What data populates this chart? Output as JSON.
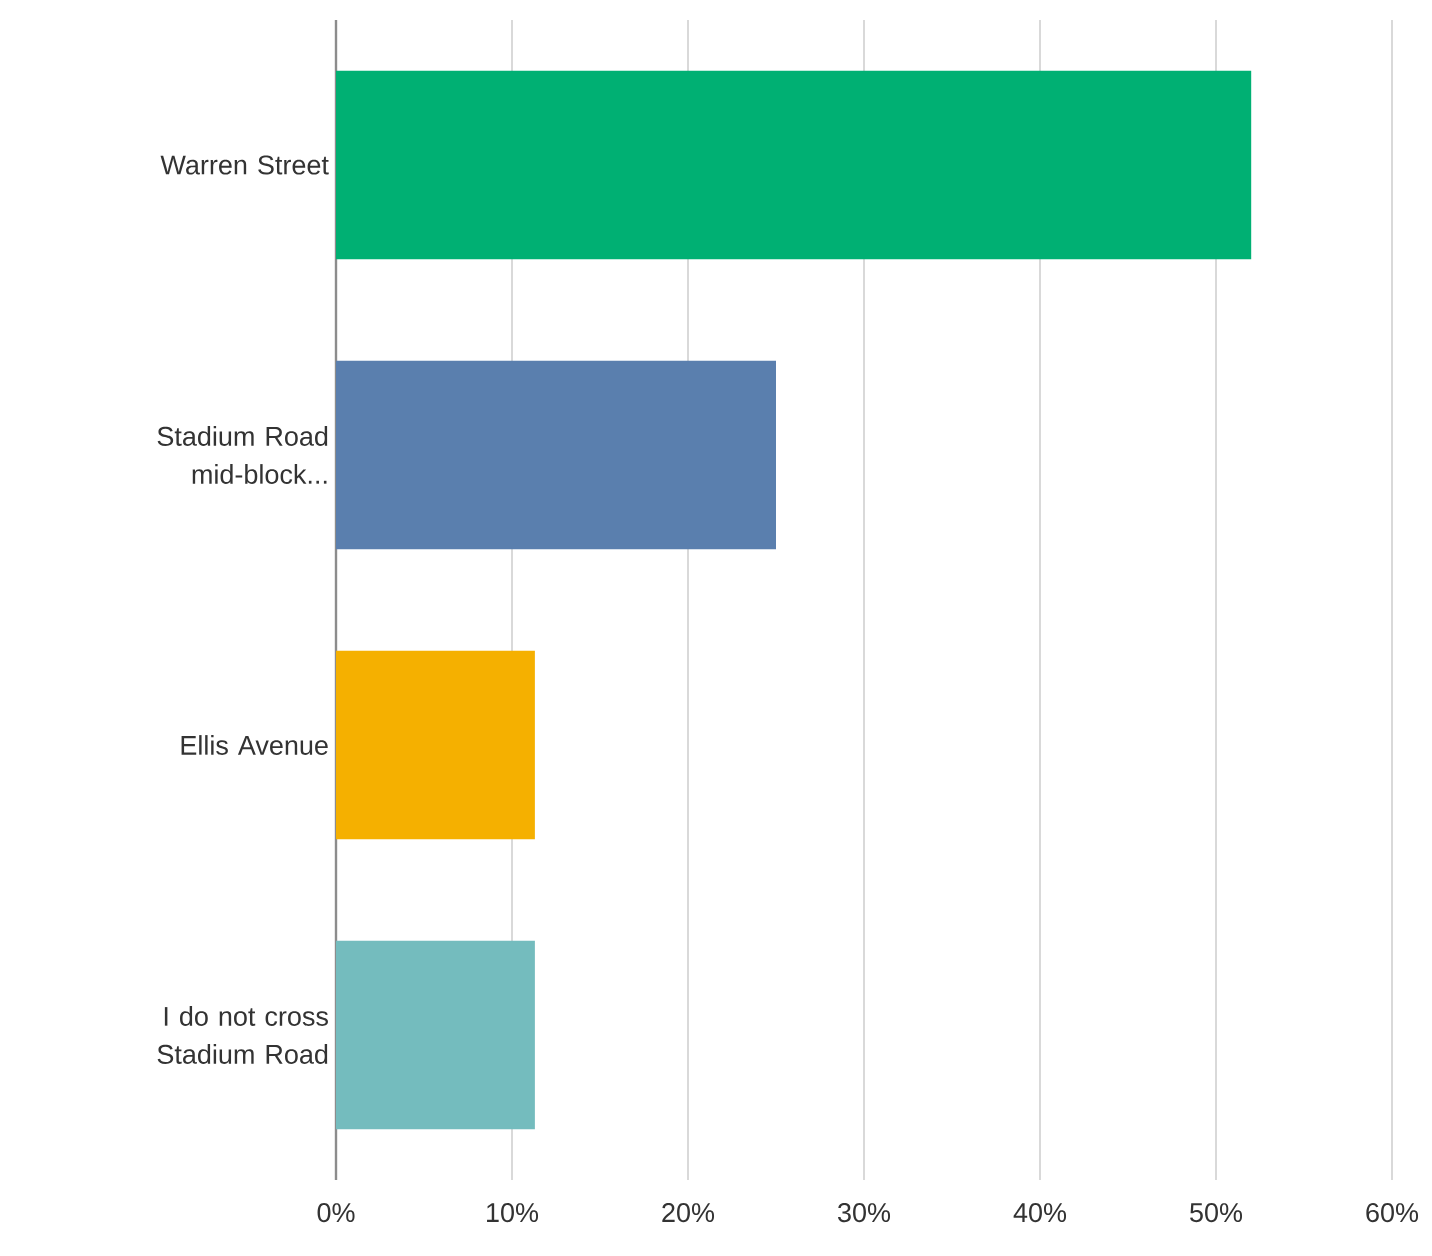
{
  "chart_data": {
    "type": "bar",
    "orientation": "horizontal",
    "categories": [
      "Warren Street",
      "Stadium Road mid-block...",
      "Ellis Avenue",
      "I do not cross Stadium Road"
    ],
    "values": [
      52,
      25,
      11.3,
      11.3
    ],
    "colors": [
      "#00b073",
      "#5a7fae",
      "#f5b000",
      "#74bcbe"
    ],
    "xlim": [
      0,
      60
    ],
    "xticks": [
      {
        "value": 0,
        "label": "0%"
      },
      {
        "value": 10,
        "label": "10%"
      },
      {
        "value": 20,
        "label": "20%"
      },
      {
        "value": 30,
        "label": "30%"
      },
      {
        "value": 40,
        "label": "40%"
      },
      {
        "value": 50,
        "label": "50%"
      },
      {
        "value": 60,
        "label": "60%"
      }
    ],
    "grid": "x"
  }
}
